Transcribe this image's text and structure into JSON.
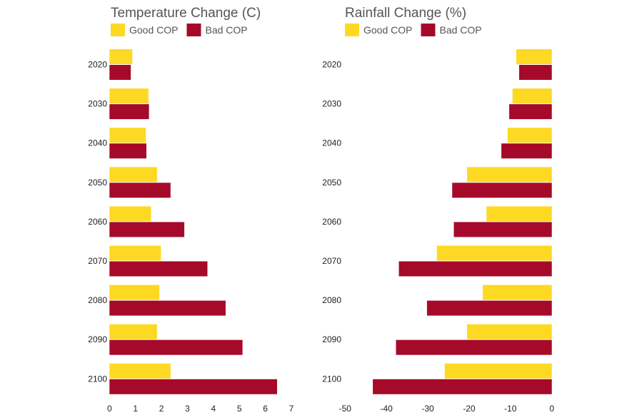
{
  "chart_data": [
    {
      "type": "bar",
      "orientation": "horizontal",
      "title": "Temperature Change (C)",
      "categories": [
        "2020",
        "2030",
        "2040",
        "2050",
        "2060",
        "2070",
        "2080",
        "2090",
        "2100"
      ],
      "series": [
        {
          "name": "Good COP",
          "color": "#FDD923",
          "values": [
            0.88,
            1.5,
            1.4,
            1.83,
            1.6,
            1.98,
            1.92,
            1.83,
            2.35
          ]
        },
        {
          "name": "Bad COP",
          "color": "#A50A2A",
          "values": [
            0.82,
            1.52,
            1.42,
            2.35,
            2.88,
            3.77,
            4.47,
            5.12,
            6.45
          ]
        }
      ],
      "xlim": [
        0,
        7
      ],
      "xticks": [
        "0",
        "1",
        "2",
        "3",
        "4",
        "5",
        "6",
        "7"
      ],
      "legend": "top-left",
      "grid": false
    },
    {
      "type": "bar",
      "orientation": "horizontal",
      "title": "Rainfall Change (%)",
      "categories": [
        "2020",
        "2030",
        "2040",
        "2050",
        "2060",
        "2070",
        "2080",
        "2090",
        "2100"
      ],
      "series": [
        {
          "name": "Good COP",
          "color": "#FDD923",
          "values": [
            -8.6,
            -9.5,
            -10.7,
            -20.5,
            -15.8,
            -27.8,
            -16.7,
            -20.5,
            -25.9
          ]
        },
        {
          "name": "Bad COP",
          "color": "#A50A2A",
          "values": [
            -7.9,
            -10.3,
            -12.2,
            -24.1,
            -23.7,
            -37.0,
            -30.2,
            -37.7,
            -43.3
          ]
        }
      ],
      "xlim": [
        -50,
        0
      ],
      "xticks": [
        "-50",
        "-40",
        "-30",
        "-20",
        "-10",
        "0"
      ],
      "legend": "top-left",
      "grid": false
    }
  ]
}
